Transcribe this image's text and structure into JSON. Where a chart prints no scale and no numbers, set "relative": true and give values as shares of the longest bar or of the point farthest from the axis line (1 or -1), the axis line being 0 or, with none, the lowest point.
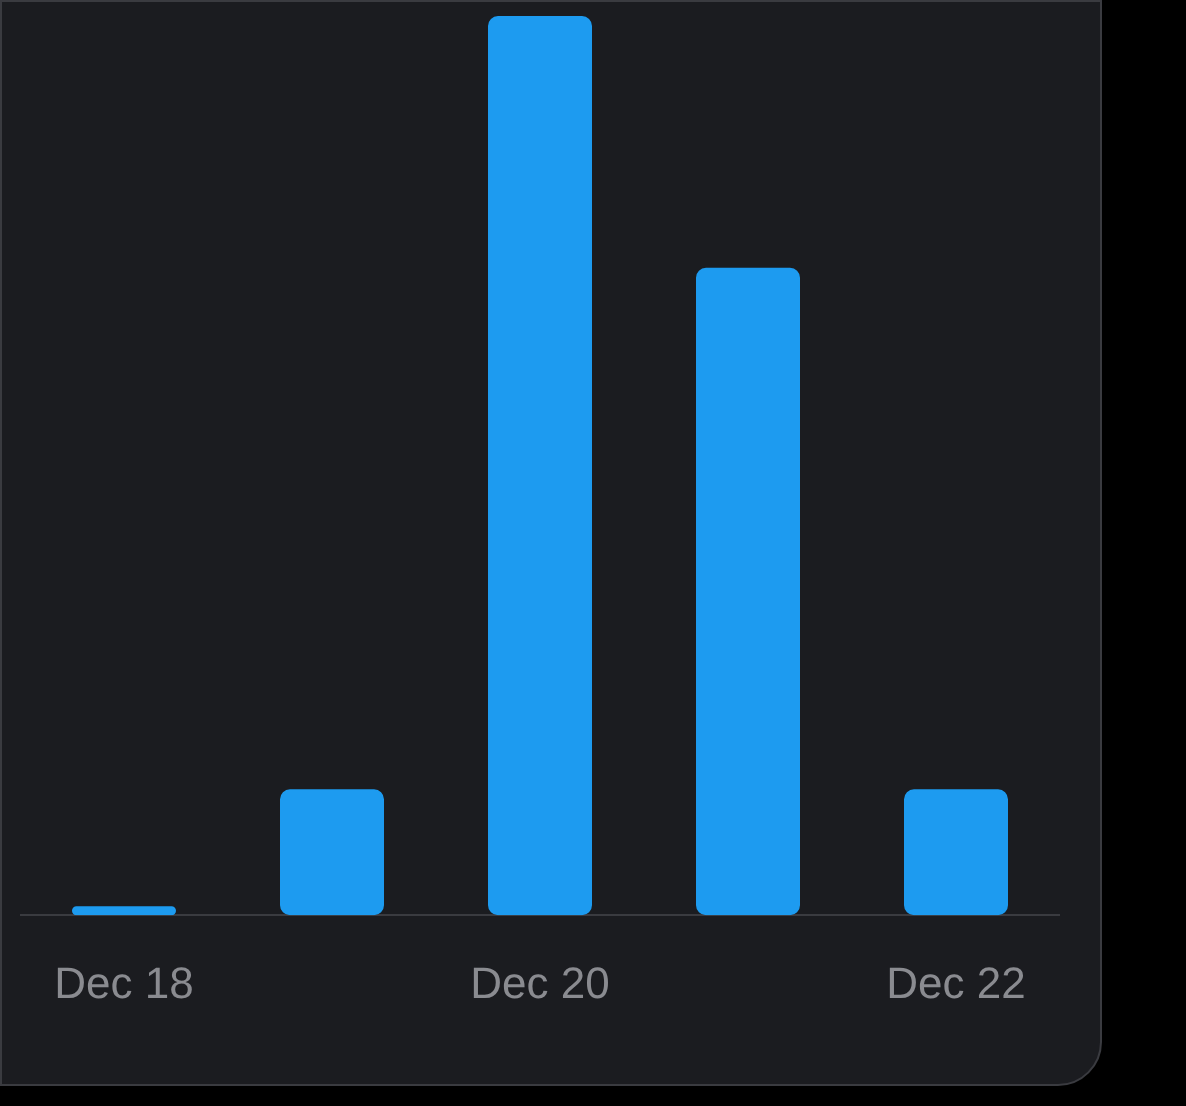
{
  "chart_data": {
    "type": "bar",
    "relative": true,
    "categories": [
      "Dec 18",
      null,
      "Dec 20",
      null,
      "Dec 22"
    ],
    "values": [
      0.01,
      0.14,
      1,
      0.72,
      0.14
    ],
    "color": "#1d9bf0",
    "legend": false
  }
}
